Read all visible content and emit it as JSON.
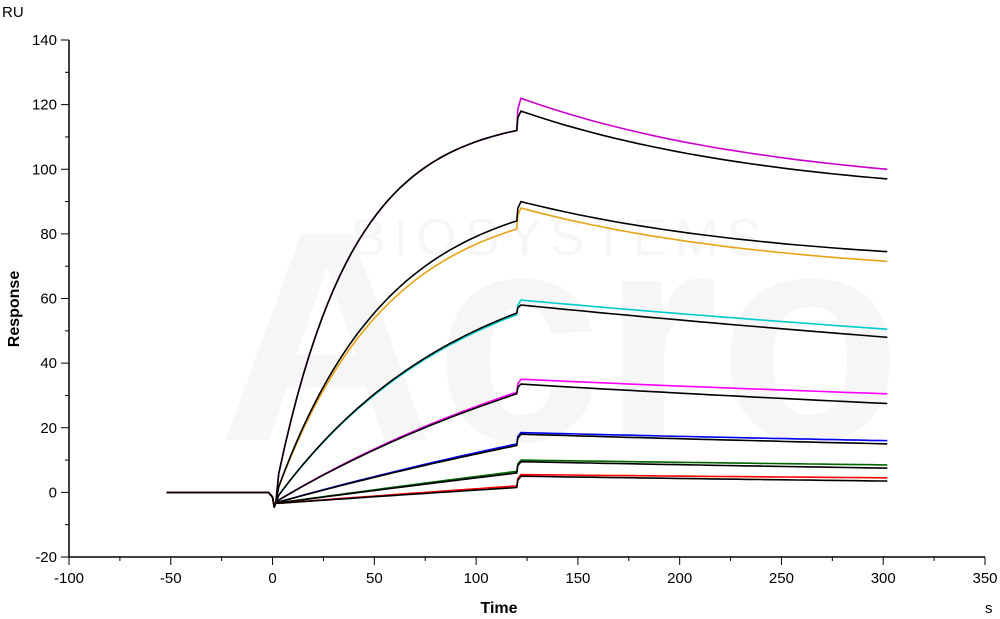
{
  "chart_data": {
    "type": "line",
    "xlabel": "Time",
    "ylabel": "Response",
    "x_unit": "s",
    "y_unit": "RU",
    "xlim": [
      -100,
      350
    ],
    "ylim": [
      -20,
      140
    ],
    "x_ticks": [
      -100,
      -50,
      0,
      50,
      100,
      150,
      200,
      250,
      300,
      350
    ],
    "y_ticks": [
      -20,
      0,
      20,
      40,
      60,
      80,
      100,
      120,
      140
    ],
    "grid": false,
    "legend": "none",
    "watermark": {
      "brand": "Acro",
      "sub": "BIOSYSTEMS"
    },
    "series": [
      {
        "color": "#cc00cc",
        "association_end": 112,
        "dissociation_start": 122,
        "dissociation_end": 100
      },
      {
        "color": "#000000",
        "association_end": 112,
        "dissociation_start": 118,
        "dissociation_end": 97
      },
      {
        "color": "#e8a317",
        "association_end": 81.5,
        "dissociation_start": 88,
        "dissociation_end": 71.5
      },
      {
        "color": "#000000",
        "association_end": 84,
        "dissociation_start": 90,
        "dissociation_end": 74.5
      },
      {
        "color": "#00cccc",
        "association_end": 55,
        "dissociation_start": 59.5,
        "dissociation_end": 50.5
      },
      {
        "color": "#000000",
        "association_end": 55.5,
        "dissociation_start": 58,
        "dissociation_end": 48
      },
      {
        "color": "#ff00ff",
        "association_end": 31,
        "dissociation_start": 35,
        "dissociation_end": 30.5
      },
      {
        "color": "#000000",
        "association_end": 30.5,
        "dissociation_start": 33.5,
        "dissociation_end": 27.5
      },
      {
        "color": "#0000ee",
        "association_end": 15,
        "dissociation_start": 18.5,
        "dissociation_end": 16
      },
      {
        "color": "#000000",
        "association_end": 14.5,
        "dissociation_start": 18,
        "dissociation_end": 15
      },
      {
        "color": "#006600",
        "association_end": 6.5,
        "dissociation_start": 10,
        "dissociation_end": 8.5
      },
      {
        "color": "#000000",
        "association_end": 6,
        "dissociation_start": 9.5,
        "dissociation_end": 7.5
      },
      {
        "color": "#ff0000",
        "association_end": 2,
        "dissociation_start": 5.5,
        "dissociation_end": 4.5
      },
      {
        "color": "#000000",
        "association_end": 1.5,
        "dissociation_start": 5,
        "dissociation_end": 3.5
      }
    ]
  }
}
